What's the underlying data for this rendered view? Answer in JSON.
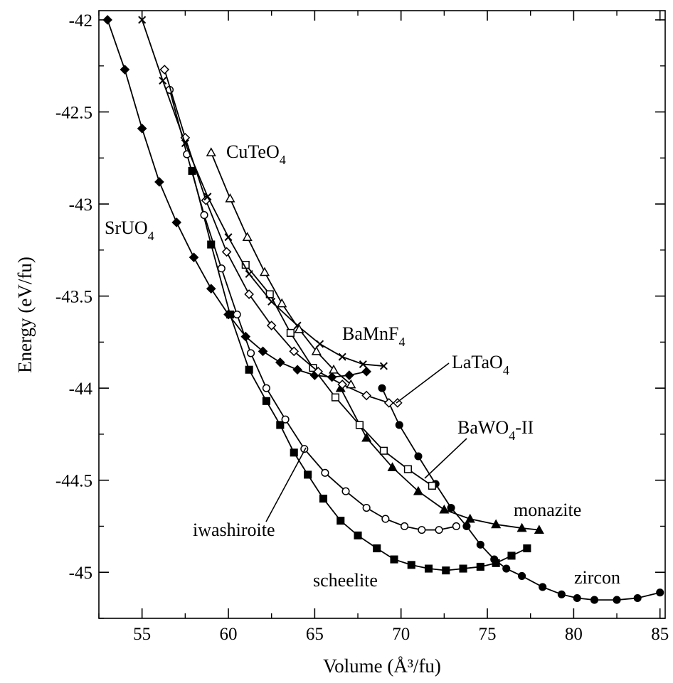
{
  "chart_data": {
    "type": "line",
    "xlabel": "Volume (Å³/fu)",
    "ylabel": "Energy (eV/fu)",
    "xlim": [
      52.5,
      85.3
    ],
    "ylim": [
      -45.25,
      -41.95
    ],
    "xticks": [
      "55",
      "60",
      "65",
      "70",
      "75",
      "80",
      "85"
    ],
    "yticks": [
      "-42",
      "-42.5",
      "-43",
      "-43.5",
      "-44",
      "-44.5",
      "-45"
    ],
    "grid": false,
    "legend": "none",
    "series": [
      {
        "name": "zircon",
        "marker": "filled-circle",
        "label_main": "zircon",
        "label_sub": "",
        "x": [
          68.9,
          69.9,
          71.0,
          72.0,
          72.9,
          73.8,
          74.6,
          75.4,
          76.1,
          77.0,
          78.2,
          79.3,
          80.2,
          81.2,
          82.5,
          83.7,
          85.0
        ],
        "y": [
          -44.0,
          -44.2,
          -44.37,
          -44.52,
          -44.65,
          -44.75,
          -44.85,
          -44.93,
          -44.98,
          -45.02,
          -45.08,
          -45.12,
          -45.14,
          -45.15,
          -45.15,
          -45.14,
          -45.11
        ]
      },
      {
        "name": "scheelite",
        "marker": "filled-square",
        "label_main": "scheelite",
        "label_sub": "",
        "x": [
          57.9,
          59.0,
          60.1,
          61.2,
          62.2,
          63.0,
          63.8,
          64.6,
          65.5,
          66.5,
          67.5,
          68.6,
          69.6,
          70.6,
          71.6,
          72.6,
          73.6,
          74.6,
          75.5,
          76.4,
          77.3
        ],
        "y": [
          -42.82,
          -43.22,
          -43.6,
          -43.9,
          -44.07,
          -44.2,
          -44.35,
          -44.47,
          -44.6,
          -44.72,
          -44.8,
          -44.87,
          -44.93,
          -44.96,
          -44.98,
          -44.99,
          -44.98,
          -44.97,
          -44.95,
          -44.91,
          -44.87
        ]
      },
      {
        "name": "iwashiroite",
        "marker": "open-circle",
        "label_main": "iwashiroite",
        "label_sub": "",
        "x": [
          56.6,
          57.6,
          58.6,
          59.6,
          60.5,
          61.3,
          62.2,
          63.3,
          64.4,
          65.6,
          66.8,
          68.0,
          69.1,
          70.2,
          71.2,
          72.2,
          73.2
        ],
        "y": [
          -42.38,
          -42.73,
          -43.06,
          -43.35,
          -43.6,
          -43.81,
          -44.0,
          -44.17,
          -44.33,
          -44.46,
          -44.56,
          -44.65,
          -44.71,
          -44.75,
          -44.77,
          -44.77,
          -44.75
        ]
      },
      {
        "name": "SrUO4",
        "marker": "filled-diamond",
        "label_main": "SrUO",
        "label_sub": "4",
        "x": [
          53.0,
          54.0,
          55.0,
          56.0,
          57.0,
          58.0,
          59.0,
          60.0,
          61.0,
          62.0,
          63.0,
          64.0,
          65.0,
          66.0,
          67.0,
          68.0
        ],
        "y": [
          -42.0,
          -42.27,
          -42.59,
          -42.88,
          -43.1,
          -43.29,
          -43.46,
          -43.6,
          -43.72,
          -43.8,
          -43.86,
          -43.9,
          -43.93,
          -43.94,
          -43.93,
          -43.91
        ]
      },
      {
        "name": "monazite",
        "marker": "filled-triangle",
        "label_main": "monazite",
        "label_sub": "",
        "x": [
          66.5,
          68.0,
          69.5,
          71.0,
          72.5,
          74.0,
          75.5,
          77.0,
          78.0
        ],
        "y": [
          -44.0,
          -44.27,
          -44.43,
          -44.56,
          -44.66,
          -44.71,
          -44.74,
          -44.76,
          -44.77
        ]
      },
      {
        "name": "BaWO4-II",
        "marker": "open-square",
        "label_main": "BaWO",
        "label_sub": "4",
        "label_suffix": "-II",
        "x": [
          61.0,
          62.4,
          63.6,
          64.9,
          66.2,
          67.6,
          69.0,
          70.4,
          71.8
        ],
        "y": [
          -43.33,
          -43.49,
          -43.7,
          -43.89,
          -44.05,
          -44.2,
          -44.34,
          -44.44,
          -44.53
        ]
      },
      {
        "name": "LaTaO4",
        "marker": "open-diamond",
        "label_main": "LaTaO",
        "label_sub": "4",
        "x": [
          56.3,
          57.5,
          58.7,
          59.9,
          61.2,
          62.5,
          63.8,
          65.2,
          66.6,
          68.0,
          69.3,
          69.8
        ],
        "y": [
          -42.27,
          -42.64,
          -42.98,
          -43.26,
          -43.49,
          -43.66,
          -43.8,
          -43.91,
          -43.98,
          -44.04,
          -44.08,
          -44.08
        ]
      },
      {
        "name": "BaMnF4",
        "marker": "cross",
        "label_main": "BaMnF",
        "label_sub": "4",
        "x": [
          55.0,
          56.2,
          57.5,
          58.8,
          60.0,
          61.2,
          62.5,
          64.0,
          65.3,
          66.6,
          67.8,
          69.0
        ],
        "y": [
          -42.0,
          -42.33,
          -42.67,
          -42.96,
          -43.18,
          -43.38,
          -43.53,
          -43.66,
          -43.76,
          -43.83,
          -43.87,
          -43.88
        ]
      },
      {
        "name": "CuTeO4",
        "marker": "open-triangle",
        "label_main": "CuTeO",
        "label_sub": "4",
        "x": [
          59.0,
          60.1,
          61.1,
          62.1,
          63.1,
          64.1,
          65.1,
          66.1,
          67.1
        ],
        "y": [
          -42.72,
          -42.97,
          -43.18,
          -43.37,
          -43.54,
          -43.68,
          -43.8,
          -43.9,
          -43.98
        ]
      }
    ]
  }
}
